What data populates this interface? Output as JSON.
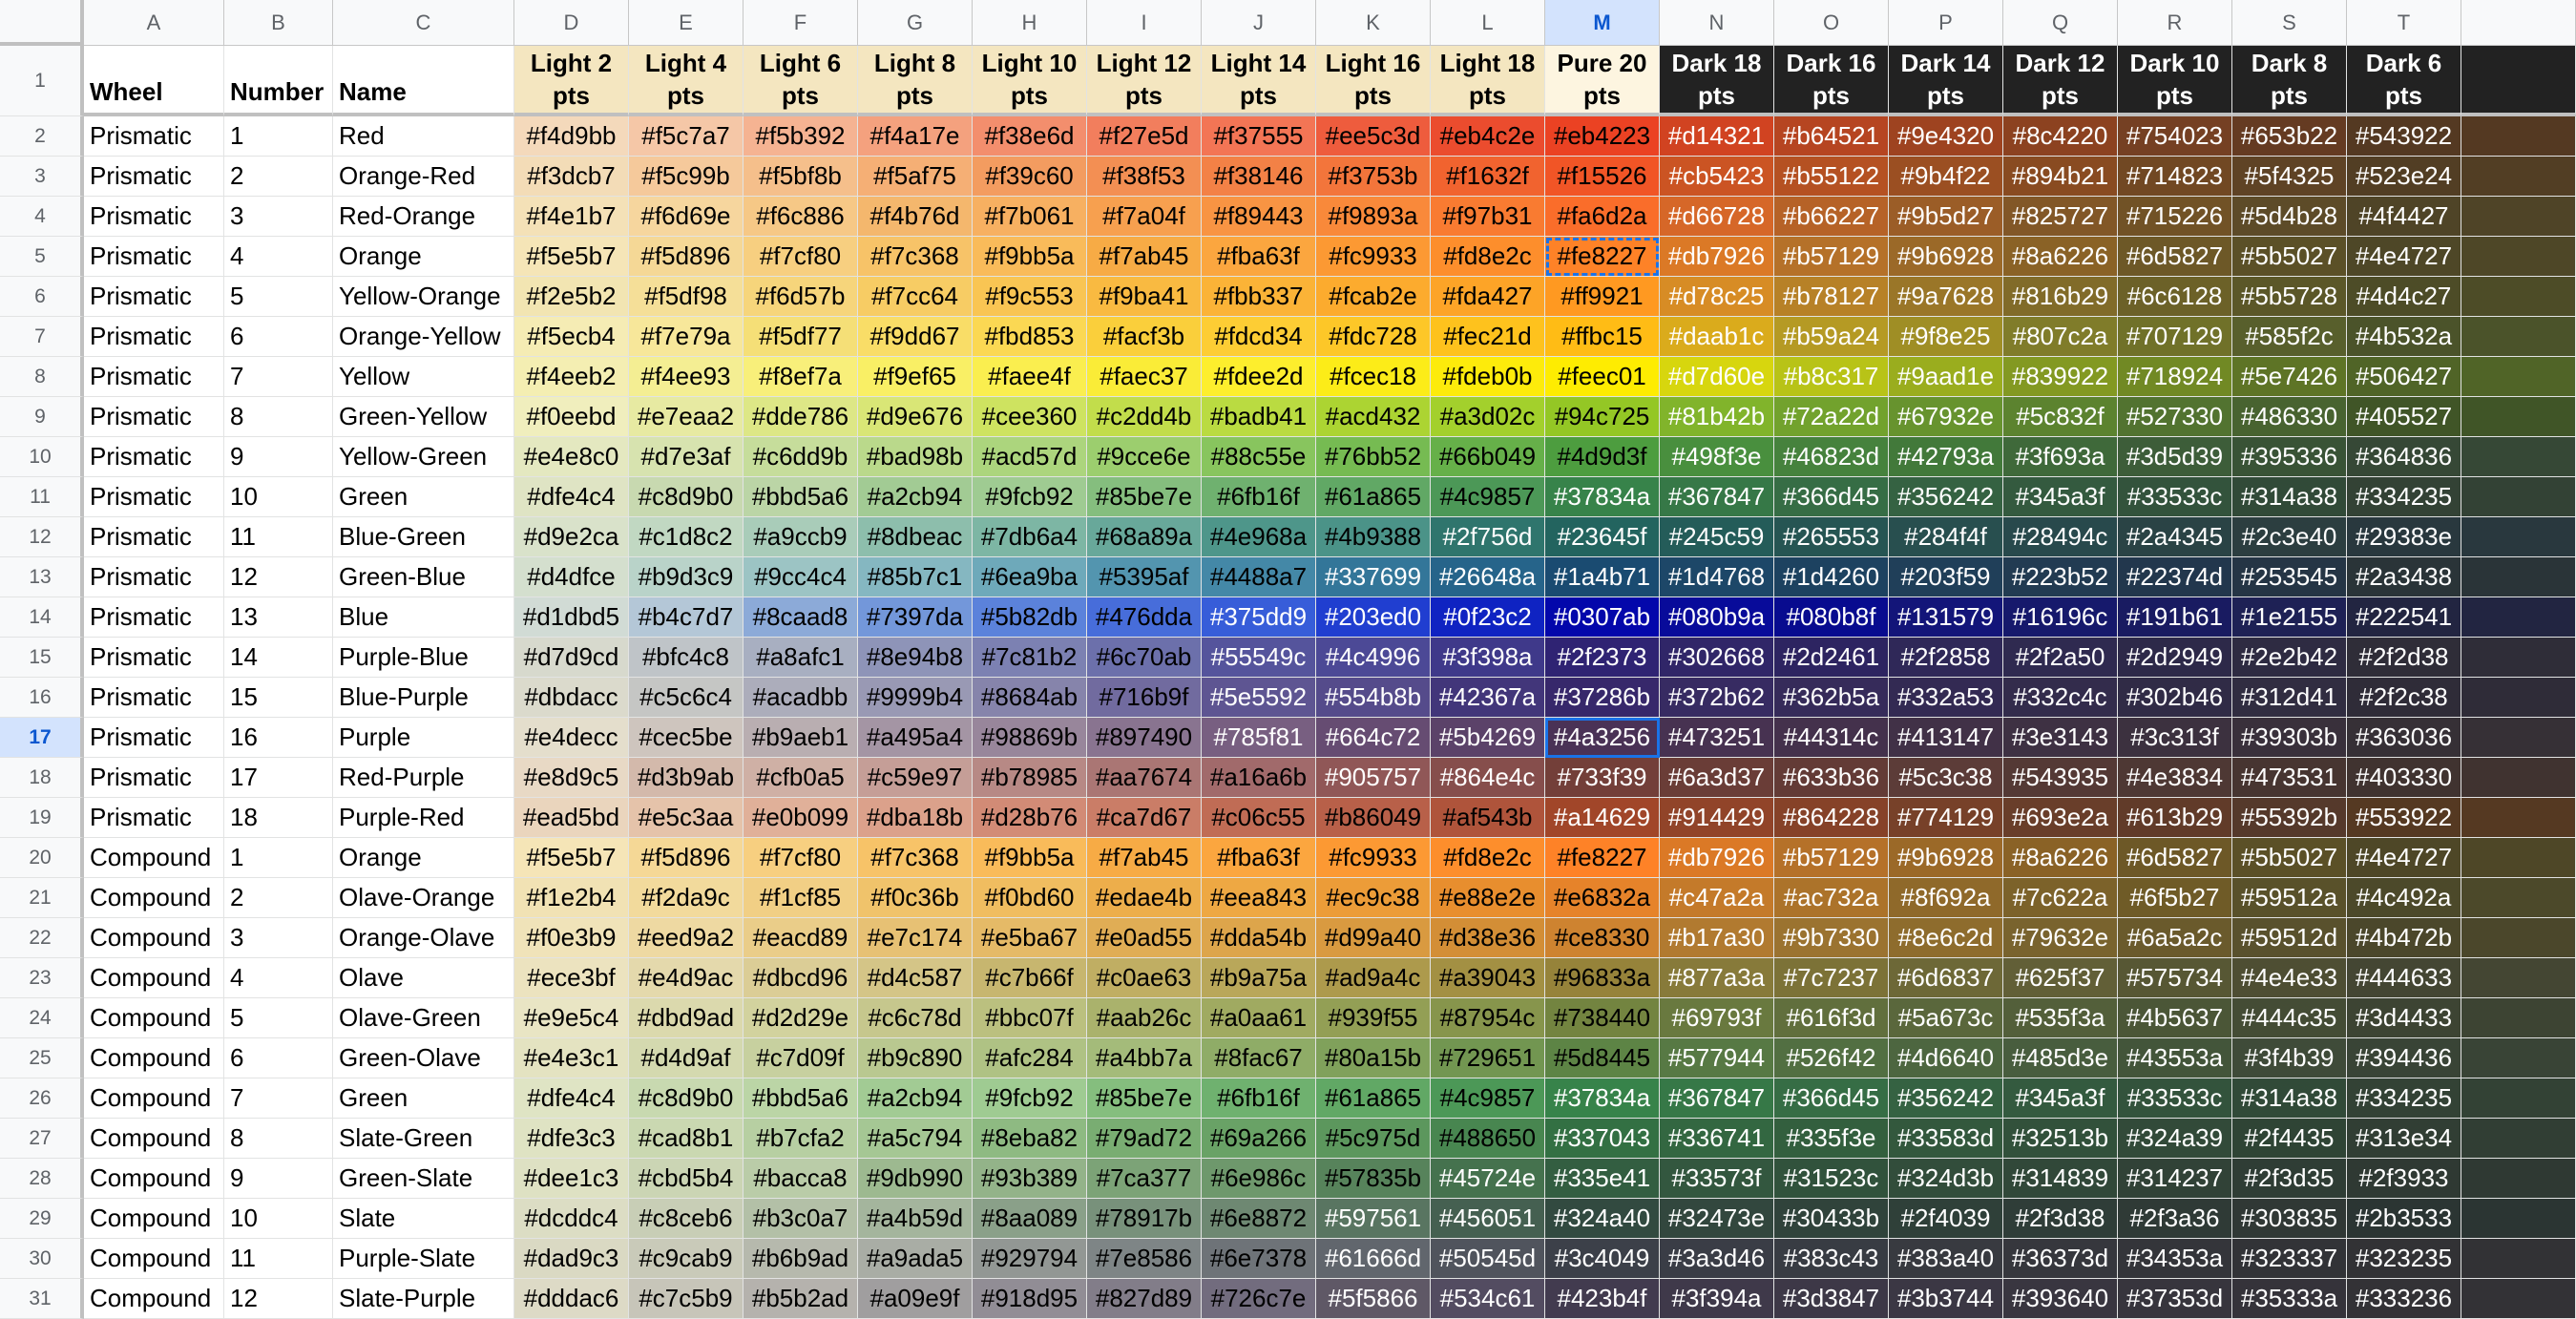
{
  "columns": [
    "A",
    "B",
    "C",
    "D",
    "E",
    "F",
    "G",
    "H",
    "I",
    "J",
    "K",
    "L",
    "M",
    "N",
    "O",
    "P",
    "Q",
    "R",
    "S",
    "T"
  ],
  "selected_column": "M",
  "selected_row": 17,
  "headers": [
    {
      "text": "Wheel",
      "style": "plain"
    },
    {
      "text": "Number",
      "style": "plain"
    },
    {
      "text": "Name",
      "style": "plain"
    },
    {
      "text": "Light 2 pts",
      "style": "light",
      "bg": "#f4e6c0"
    },
    {
      "text": "Light 4 pts",
      "style": "light",
      "bg": "#f4e6c0"
    },
    {
      "text": "Light 6 pts",
      "style": "light",
      "bg": "#f4e6c0"
    },
    {
      "text": "Light 8 pts",
      "style": "light",
      "bg": "#f4e6c0"
    },
    {
      "text": "Light 10 pts",
      "style": "light",
      "bg": "#f4e6c0"
    },
    {
      "text": "Light 12 pts",
      "style": "light",
      "bg": "#f4e6c0"
    },
    {
      "text": "Light 14 pts",
      "style": "light",
      "bg": "#f4e6c0"
    },
    {
      "text": "Light 16 pts",
      "style": "light",
      "bg": "#f4e6c0"
    },
    {
      "text": "Light 18 pts",
      "style": "light",
      "bg": "#f4e6c0"
    },
    {
      "text": "Pure 20 pts",
      "style": "light",
      "bg": "#fdf5e0"
    },
    {
      "text": "Dark 18 pts",
      "style": "dark"
    },
    {
      "text": "Dark 16 pts",
      "style": "dark"
    },
    {
      "text": "Dark 14 pts",
      "style": "dark"
    },
    {
      "text": "Dark 12 pts",
      "style": "dark"
    },
    {
      "text": "Dark 10 pts",
      "style": "dark"
    },
    {
      "text": "Dark 8 pts",
      "style": "dark"
    },
    {
      "text": "Dark 6 pts",
      "style": "dark"
    }
  ],
  "rows": [
    [
      "Prismatic",
      "1",
      "Red",
      "#f4d9bb",
      "#f5c7a7",
      "#f5b392",
      "#f4a17e",
      "#f38e6d",
      "#f27e5d",
      "#f37555",
      "#ee5c3d",
      "#eb4c2e",
      "#eb4223",
      "#d14321",
      "#b64521",
      "#9e4320",
      "#8c4220",
      "#754023",
      "#653b22",
      "#543922"
    ],
    [
      "Prismatic",
      "2",
      "Orange-Red",
      "#f3dcb7",
      "#f5c99b",
      "#f5bf8b",
      "#f5af75",
      "#f39c60",
      "#f38f53",
      "#f38146",
      "#f3753b",
      "#f1632f",
      "#f15526",
      "#cb5423",
      "#b55122",
      "#9b4f22",
      "#894b21",
      "#714823",
      "#5f4325",
      "#523e24"
    ],
    [
      "Prismatic",
      "3",
      "Red-Orange",
      "#f4e1b7",
      "#f6d69e",
      "#f6c886",
      "#f4b76d",
      "#f7b061",
      "#f7a04f",
      "#f89443",
      "#f9893a",
      "#f97b31",
      "#fa6d2a",
      "#d66728",
      "#b66227",
      "#9b5d27",
      "#825727",
      "#715226",
      "#5d4b28",
      "#4f4427"
    ],
    [
      "Prismatic",
      "4",
      "Orange",
      "#f5e5b7",
      "#f5d896",
      "#f7cf80",
      "#f7c368",
      "#f9bb5a",
      "#f7ab45",
      "#fba63f",
      "#fc9933",
      "#fd8e2c",
      "#fe8227",
      "#db7926",
      "#b57129",
      "#9b6928",
      "#8a6226",
      "#6d5827",
      "#5b5027",
      "#4e4727"
    ],
    [
      "Prismatic",
      "5",
      "Yellow-Orange",
      "#f2e5b2",
      "#f5df98",
      "#f6d57b",
      "#f7cc64",
      "#f9c553",
      "#f9ba41",
      "#fbb337",
      "#fcab2e",
      "#fda427",
      "#ff9921",
      "#d78c25",
      "#b78127",
      "#9a7628",
      "#816b29",
      "#6c6128",
      "#5b5728",
      "#4d4c27"
    ],
    [
      "Prismatic",
      "6",
      "Orange-Yellow",
      "#f5ecb4",
      "#f7e79a",
      "#f5df77",
      "#f9dd67",
      "#fbd853",
      "#facf3b",
      "#fdcd34",
      "#fdc728",
      "#fec21d",
      "#ffbc15",
      "#daab1c",
      "#b59a24",
      "#9f8e25",
      "#807c2a",
      "#707129",
      "#585f2c",
      "#4b532a"
    ],
    [
      "Prismatic",
      "7",
      "Yellow",
      "#f4eeb2",
      "#f4ee93",
      "#f8ef7a",
      "#f9ef65",
      "#faee4f",
      "#faec37",
      "#fdee2d",
      "#fcec18",
      "#fdeb0b",
      "#feec01",
      "#d7d60e",
      "#b8c317",
      "#9aad1e",
      "#839922",
      "#718924",
      "#5e7426",
      "#506427"
    ],
    [
      "Prismatic",
      "8",
      "Green-Yellow",
      "#f0eebd",
      "#e7eaa2",
      "#dde786",
      "#d9e676",
      "#cee360",
      "#c2dd4b",
      "#badb41",
      "#acd432",
      "#a3d02c",
      "#94c725",
      "#81b42b",
      "#72a22d",
      "#67932e",
      "#5c832f",
      "#527330",
      "#486330",
      "#405527"
    ],
    [
      "Prismatic",
      "9",
      "Yellow-Green",
      "#e4e8c0",
      "#d7e3af",
      "#c6dd9b",
      "#bad98b",
      "#acd57d",
      "#9cce6e",
      "#88c55e",
      "#76bb52",
      "#66b049",
      "#4d9d3f",
      "#498f3e",
      "#46823d",
      "#42793a",
      "#3f693a",
      "#3d5d39",
      "#395336",
      "#364836"
    ],
    [
      "Prismatic",
      "10",
      "Green",
      "#dfe4c4",
      "#c8d9b0",
      "#bbd5a6",
      "#a2cb94",
      "#9fcb92",
      "#85be7e",
      "#6fb16f",
      "#61a865",
      "#4c9857",
      "#37834a",
      "#367847",
      "#366d45",
      "#356242",
      "#345a3f",
      "#33533c",
      "#314a38",
      "#334235"
    ],
    [
      "Prismatic",
      "11",
      "Blue-Green",
      "#d9e2ca",
      "#c1d8c2",
      "#a9ccb9",
      "#8dbeac",
      "#7db6a4",
      "#68a89a",
      "#4e968a",
      "#4b9388",
      "#2f756d",
      "#23645f",
      "#245c59",
      "#265553",
      "#284f4f",
      "#28494c",
      "#2a4345",
      "#2c3e40",
      "#29383e"
    ],
    [
      "Prismatic",
      "12",
      "Green-Blue",
      "#d4dfce",
      "#b9d3c9",
      "#9cc4c4",
      "#85b7c1",
      "#6ea9ba",
      "#5395af",
      "#4488a7",
      "#337699",
      "#26648a",
      "#1a4b71",
      "#1d4768",
      "#1d4260",
      "#203f59",
      "#223b52",
      "#22374d",
      "#253545",
      "#2a3438"
    ],
    [
      "Prismatic",
      "13",
      "Blue",
      "#d1dbd5",
      "#b4c7d7",
      "#8caad8",
      "#7397da",
      "#5b82db",
      "#476dda",
      "#375dd9",
      "#203ed0",
      "#0f23c2",
      "#0307ab",
      "#080b9a",
      "#080b8f",
      "#131579",
      "#16196c",
      "#191b61",
      "#1e2155",
      "#222541"
    ],
    [
      "Prismatic",
      "14",
      "Purple-Blue",
      "#d7d9cd",
      "#bfc4c8",
      "#a8afc1",
      "#8e94b8",
      "#7c81b2",
      "#6c70ab",
      "#55549c",
      "#4c4996",
      "#3f398a",
      "#2f2373",
      "#302668",
      "#2d2461",
      "#2f2858",
      "#2f2a50",
      "#2d2949",
      "#2e2b42",
      "#2f2d38"
    ],
    [
      "Prismatic",
      "15",
      "Blue-Purple",
      "#dbdacc",
      "#c5c6c4",
      "#acadbb",
      "#9999b4",
      "#8684ab",
      "#716b9f",
      "#5e5592",
      "#554b8b",
      "#42367a",
      "#37286b",
      "#372b62",
      "#362b5a",
      "#332a53",
      "#332c4c",
      "#302b46",
      "#312d41",
      "#2f2c38"
    ],
    [
      "Prismatic",
      "16",
      "Purple",
      "#e4decc",
      "#cec5be",
      "#b9aeb1",
      "#a495a4",
      "#98869b",
      "#897490",
      "#785f81",
      "#664c72",
      "#5b4269",
      "#4a3256",
      "#473251",
      "#44314c",
      "#413147",
      "#3e3143",
      "#3c313f",
      "#39303b",
      "#363036"
    ],
    [
      "Prismatic",
      "17",
      "Red-Purple",
      "#e8d9c5",
      "#d3b9ab",
      "#cfb0a5",
      "#c59e97",
      "#b78985",
      "#aa7674",
      "#a16a6b",
      "#905757",
      "#864e4c",
      "#733f39",
      "#6a3d37",
      "#633b36",
      "#5c3c38",
      "#543935",
      "#4e3834",
      "#473531",
      "#403330"
    ],
    [
      "Prismatic",
      "18",
      "Purple-Red",
      "#ead5bd",
      "#e5c3aa",
      "#e0b099",
      "#dba18b",
      "#d28b76",
      "#ca7d67",
      "#c06c55",
      "#b86049",
      "#af543b",
      "#a14629",
      "#914429",
      "#864228",
      "#774129",
      "#693e2a",
      "#613b29",
      "#55392b",
      "#553922"
    ],
    [
      "Compound",
      "1",
      "Orange",
      "#f5e5b7",
      "#f5d896",
      "#f7cf80",
      "#f7c368",
      "#f9bb5a",
      "#f7ab45",
      "#fba63f",
      "#fc9933",
      "#fd8e2c",
      "#fe8227",
      "#db7926",
      "#b57129",
      "#9b6928",
      "#8a6226",
      "#6d5827",
      "#5b5027",
      "#4e4727"
    ],
    [
      "Compound",
      "2",
      "Olave-Orange",
      "#f1e2b4",
      "#f2da9c",
      "#f1cf85",
      "#f0c36b",
      "#f0bd60",
      "#edae4b",
      "#eea843",
      "#ec9c38",
      "#e88e2e",
      "#e6832a",
      "#c47a2a",
      "#ac732a",
      "#8f692a",
      "#7c622a",
      "#6f5b27",
      "#59512a",
      "#4c492a"
    ],
    [
      "Compound",
      "3",
      "Orange-Olave",
      "#f0e3b9",
      "#eed9a2",
      "#eacd89",
      "#e7c174",
      "#e5ba67",
      "#e0ad55",
      "#dda54b",
      "#d99a40",
      "#d38e36",
      "#ce8330",
      "#b17a30",
      "#9b7330",
      "#8e6c2d",
      "#79632e",
      "#6a5a2c",
      "#59512d",
      "#4b472b"
    ],
    [
      "Compound",
      "4",
      "Olave",
      "#ece3bf",
      "#e4d9ac",
      "#dbcd96",
      "#d4c587",
      "#c7b66f",
      "#c0ae63",
      "#b9a75a",
      "#ad9a4c",
      "#a39043",
      "#96833a",
      "#877a3a",
      "#7c7237",
      "#6d6837",
      "#625f37",
      "#575734",
      "#4e4e33",
      "#444633"
    ],
    [
      "Compound",
      "5",
      "Olave-Green",
      "#e9e5c4",
      "#dbd9ad",
      "#d2d29e",
      "#c6c78d",
      "#bbc07f",
      "#aab26c",
      "#a0aa61",
      "#939f55",
      "#87954c",
      "#738440",
      "#69793f",
      "#616f3d",
      "#5a673c",
      "#535f3a",
      "#4b5637",
      "#444c35",
      "#3d4433"
    ],
    [
      "Compound",
      "6",
      "Green-Olave",
      "#e4e3c1",
      "#d4d9af",
      "#c7d09f",
      "#b9c890",
      "#afc284",
      "#a4bb7a",
      "#8fac67",
      "#80a15b",
      "#729651",
      "#5d8445",
      "#577944",
      "#526f42",
      "#4d6640",
      "#485d3e",
      "#43553a",
      "#3f4b39",
      "#394436"
    ],
    [
      "Compound",
      "7",
      "Green",
      "#dfe4c4",
      "#c8d9b0",
      "#bbd5a6",
      "#a2cb94",
      "#9fcb92",
      "#85be7e",
      "#6fb16f",
      "#61a865",
      "#4c9857",
      "#37834a",
      "#367847",
      "#366d45",
      "#356242",
      "#345a3f",
      "#33533c",
      "#314a38",
      "#334235"
    ],
    [
      "Compound",
      "8",
      "Slate-Green",
      "#dfe3c3",
      "#cad8b1",
      "#b7cfa2",
      "#a5c794",
      "#8eba82",
      "#79ad72",
      "#69a266",
      "#5c975d",
      "#488650",
      "#337043",
      "#336741",
      "#335f3e",
      "#33583d",
      "#32513b",
      "#324a39",
      "#2f4435",
      "#313e34"
    ],
    [
      "Compound",
      "9",
      "Green-Slate",
      "#dee1c3",
      "#cbd5b4",
      "#bacca8",
      "#9db990",
      "#93b389",
      "#7ca377",
      "#6e986c",
      "#57835b",
      "#45724e",
      "#335e41",
      "#33573f",
      "#31523c",
      "#324d3b",
      "#314839",
      "#314237",
      "#2f3d35",
      "#2f3933"
    ],
    [
      "Compound",
      "10",
      "Slate",
      "#dcddc4",
      "#c8ceb6",
      "#b3c0a7",
      "#a4b59d",
      "#8aa089",
      "#78917b",
      "#6e8872",
      "#597561",
      "#456051",
      "#324a40",
      "#32473e",
      "#30433b",
      "#2f4039",
      "#2f3d38",
      "#2f3a36",
      "#303835",
      "#2b3533"
    ],
    [
      "Compound",
      "11",
      "Purple-Slate",
      "#dad9c3",
      "#c9cab9",
      "#b6b9ad",
      "#a9ada5",
      "#929794",
      "#7e8586",
      "#6e7378",
      "#61666d",
      "#50545d",
      "#3c4049",
      "#3a3d46",
      "#383c43",
      "#383a40",
      "#36373d",
      "#34353a",
      "#323337",
      "#323235"
    ],
    [
      "Compound",
      "12",
      "Slate-Purple",
      "#dddac6",
      "#c7c5b9",
      "#b5b2ad",
      "#a09e9f",
      "#918d95",
      "#827d89",
      "#726c7e",
      "#5f5866",
      "#534c61",
      "#423b4f",
      "#3f394a",
      "#3d3847",
      "#3b3744",
      "#393640",
      "#37353d",
      "#35333a",
      "#333236"
    ]
  ]
}
